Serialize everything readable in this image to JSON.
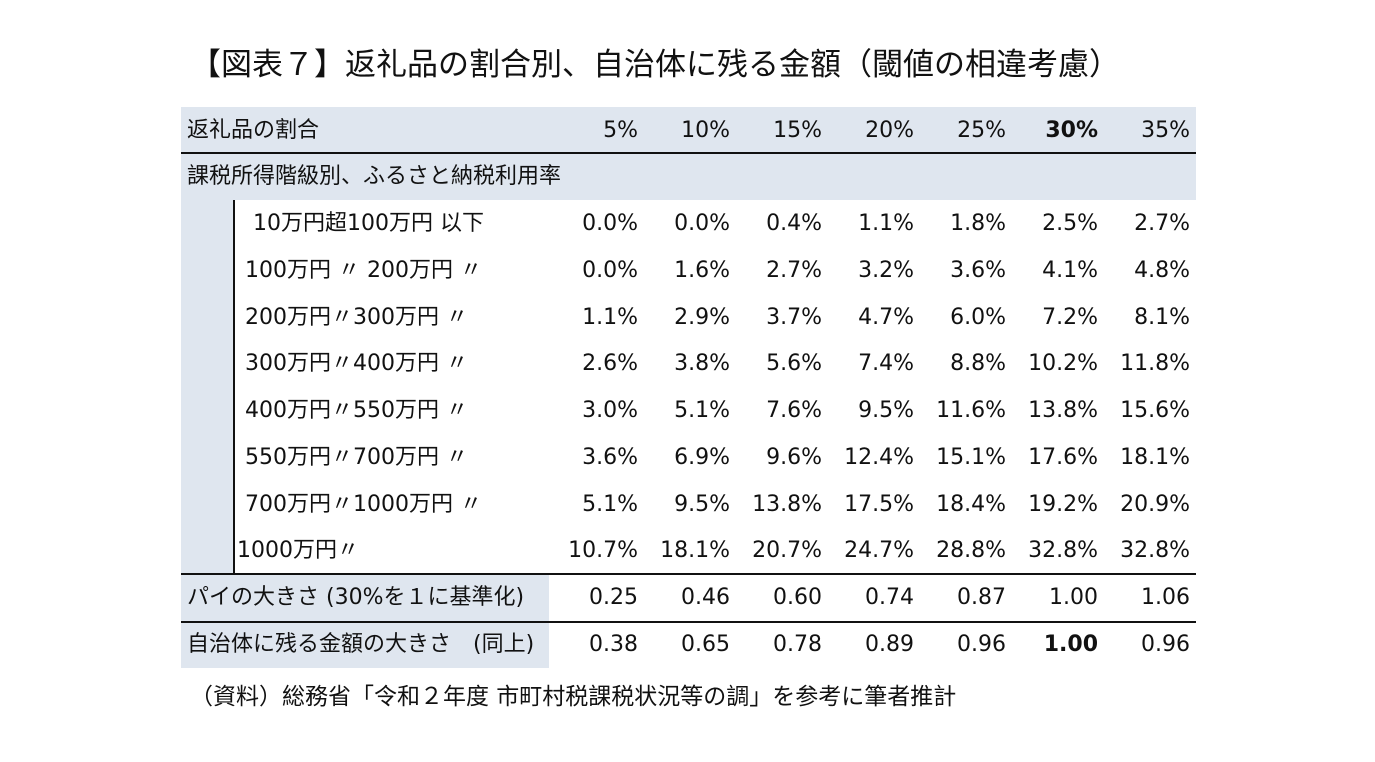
{
  "title": "【図表７】返礼品の割合別、自治体に残る金額（閾値の相違考慮）",
  "source": "（資料）総務省「令和２年度 市町村税課税状況等の調」を参考に筆者推計",
  "chart_data": {
    "type": "table",
    "columns": [
      "5%",
      "10%",
      "15%",
      "20%",
      "25%",
      "30%",
      "35%"
    ],
    "header_label": "返礼品の割合",
    "section_label": "課税所得階級別、ふるさと納税利用率",
    "bold_column": "30%",
    "income_rows": [
      {
        "label": "10万円超100万円 以下",
        "values": [
          "0.0%",
          "0.0%",
          "0.4%",
          "1.1%",
          "1.8%",
          "2.5%",
          "2.7%"
        ]
      },
      {
        "label": "100万円 〃 200万円 〃",
        "values": [
          "0.0%",
          "1.6%",
          "2.7%",
          "3.2%",
          "3.6%",
          "4.1%",
          "4.8%"
        ]
      },
      {
        "label": "200万円〃300万円 〃",
        "values": [
          "1.1%",
          "2.9%",
          "3.7%",
          "4.7%",
          "6.0%",
          "7.2%",
          "8.1%"
        ]
      },
      {
        "label": "300万円〃400万円 〃",
        "values": [
          "2.6%",
          "3.8%",
          "5.6%",
          "7.4%",
          "8.8%",
          "10.2%",
          "11.8%"
        ]
      },
      {
        "label": "400万円〃550万円 〃",
        "values": [
          "3.0%",
          "5.1%",
          "7.6%",
          "9.5%",
          "11.6%",
          "13.8%",
          "15.6%"
        ]
      },
      {
        "label": "550万円〃700万円 〃",
        "values": [
          "3.6%",
          "6.9%",
          "9.6%",
          "12.4%",
          "15.1%",
          "17.6%",
          "18.1%"
        ]
      },
      {
        "label": "700万円〃1000万円 〃",
        "values": [
          "5.1%",
          "9.5%",
          "13.8%",
          "17.5%",
          "18.4%",
          "19.2%",
          "20.9%"
        ]
      },
      {
        "label": "1000万円〃",
        "values": [
          "10.7%",
          "18.1%",
          "20.7%",
          "24.7%",
          "28.8%",
          "32.8%",
          "32.8%"
        ]
      }
    ],
    "summary_rows": [
      {
        "label": "パイの大きさ (30%を１に基準化)",
        "values": [
          "0.25",
          "0.46",
          "0.60",
          "0.74",
          "0.87",
          "1.00",
          "1.06"
        ],
        "bold_index": -1
      },
      {
        "label": "自治体に残る金額の大きさ　(同上)",
        "values": [
          "0.38",
          "0.65",
          "0.78",
          "0.89",
          "0.96",
          "1.00",
          "0.96"
        ],
        "bold_index": 5
      }
    ]
  }
}
